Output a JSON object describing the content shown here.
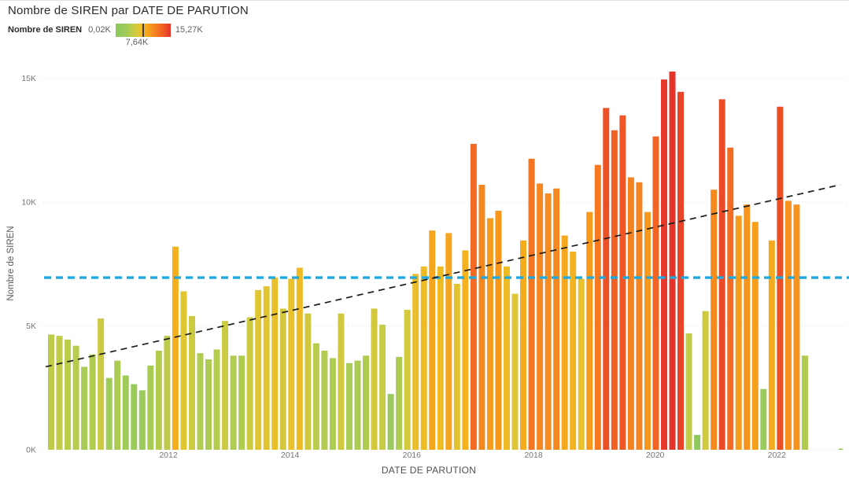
{
  "title": "Nombre de SIREN par DATE DE PARUTION",
  "legend": {
    "label": "Nombre de SIREN",
    "min": "0,02K",
    "mid": "7,64K",
    "max": "15,27K"
  },
  "y_axis": {
    "title": "Nombre de SIREN",
    "ticks": [
      "0K",
      "5K",
      "10K",
      "15K"
    ]
  },
  "x_axis": {
    "title": "DATE DE PARUTION",
    "ticks": [
      "2012",
      "2014",
      "2016",
      "2018",
      "2020",
      "2022"
    ]
  },
  "colors": {
    "background": "#ffffff",
    "mean_line_blue": "#1fa9e1",
    "trend_line": "#1c1c1c",
    "grid": "#e0e0e0",
    "text_dark": "#2b2b2b",
    "text_gray": "#757575",
    "gradient_stops": [
      [
        0.0,
        "#8cc85f"
      ],
      [
        0.18,
        "#9ccb5a"
      ],
      [
        0.3,
        "#becc4a"
      ],
      [
        0.42,
        "#e1c634"
      ],
      [
        0.5,
        "#f2b81f"
      ],
      [
        0.62,
        "#f79b1d"
      ],
      [
        0.75,
        "#f47a21"
      ],
      [
        0.87,
        "#ef5a25"
      ],
      [
        1.0,
        "#e5332a"
      ]
    ]
  },
  "chart_data": {
    "type": "bar",
    "title": "Nombre de SIREN par DATE DE PARUTION",
    "xlabel": "DATE DE PARUTION",
    "ylabel": "Nombre de SIREN",
    "unit": "K",
    "ylim": [
      0,
      15.27
    ],
    "grid": "dotted-horizontal",
    "color_scale": {
      "min": 0.02,
      "mid": 7.64,
      "max": 15.27
    },
    "mean_line_k": 6.95,
    "trend_line": {
      "start_k": 3.35,
      "end_k": 10.7
    },
    "x_tick_years": [
      2012,
      2014,
      2016,
      2018,
      2020,
      2022
    ],
    "x_start_year_estimate": 2010.1,
    "x_step_years_estimate": 0.135,
    "values": [
      4.65,
      4.6,
      4.45,
      4.2,
      3.35,
      3.85,
      5.3,
      2.9,
      3.6,
      3.0,
      2.65,
      2.4,
      3.4,
      4.0,
      4.6,
      8.2,
      6.4,
      5.4,
      3.9,
      3.65,
      4.05,
      5.2,
      3.8,
      3.8,
      5.35,
      6.45,
      6.6,
      6.95,
      5.7,
      6.9,
      7.35,
      5.5,
      4.3,
      4.0,
      3.7,
      5.5,
      3.5,
      3.6,
      3.8,
      5.7,
      5.05,
      2.25,
      3.75,
      5.65,
      7.1,
      7.4,
      8.85,
      7.4,
      8.75,
      6.7,
      8.05,
      12.35,
      10.7,
      9.35,
      9.65,
      7.4,
      6.3,
      8.45,
      11.75,
      10.75,
      10.35,
      10.55,
      8.65,
      8.0,
      6.9,
      9.6,
      11.5,
      13.8,
      12.9,
      13.5,
      11.0,
      10.8,
      9.6,
      12.65,
      14.95,
      15.27,
      14.45,
      4.7,
      0.6,
      5.6,
      10.5,
      14.15,
      12.2,
      9.45,
      9.9,
      9.2,
      2.45,
      8.45,
      13.85,
      10.05,
      9.9,
      3.8,
      0.02
    ]
  }
}
